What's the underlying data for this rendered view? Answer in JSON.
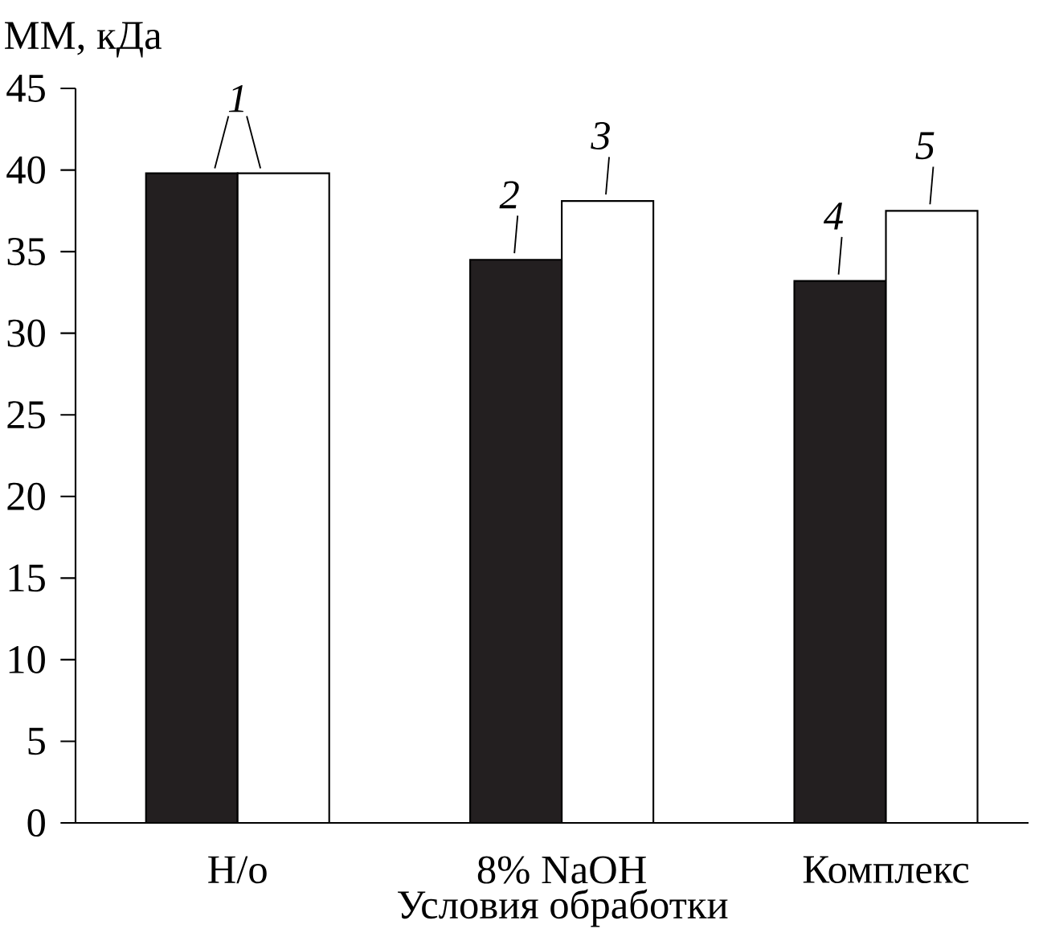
{
  "chart_data": {
    "type": "bar",
    "ylabel": "ММ, кДа",
    "xlabel": "Условия обработки",
    "categories": [
      "Н/о",
      "8% NaOH",
      "Комплекс"
    ],
    "series": [
      {
        "color": "#231f20",
        "values": [
          39.8,
          34.5,
          33.2
        ]
      },
      {
        "color": "#ffffff",
        "values": [
          39.8,
          38.1,
          37.5
        ]
      }
    ],
    "ylim": [
      0,
      45
    ],
    "yticks": [
      0,
      5,
      10,
      15,
      20,
      25,
      30,
      35,
      40,
      45
    ],
    "grid": false,
    "annotations": [
      {
        "text": "1",
        "x": "Н/о",
        "y": 39.8
      },
      {
        "text": "2",
        "x": "8% NaOH",
        "y": 34.5
      },
      {
        "text": "3",
        "x": "8% NaOH",
        "y": 38.1
      },
      {
        "text": "4",
        "x": "Комплекс",
        "y": 33.2
      },
      {
        "text": "5",
        "x": "Комплекс",
        "y": 37.5
      }
    ]
  }
}
